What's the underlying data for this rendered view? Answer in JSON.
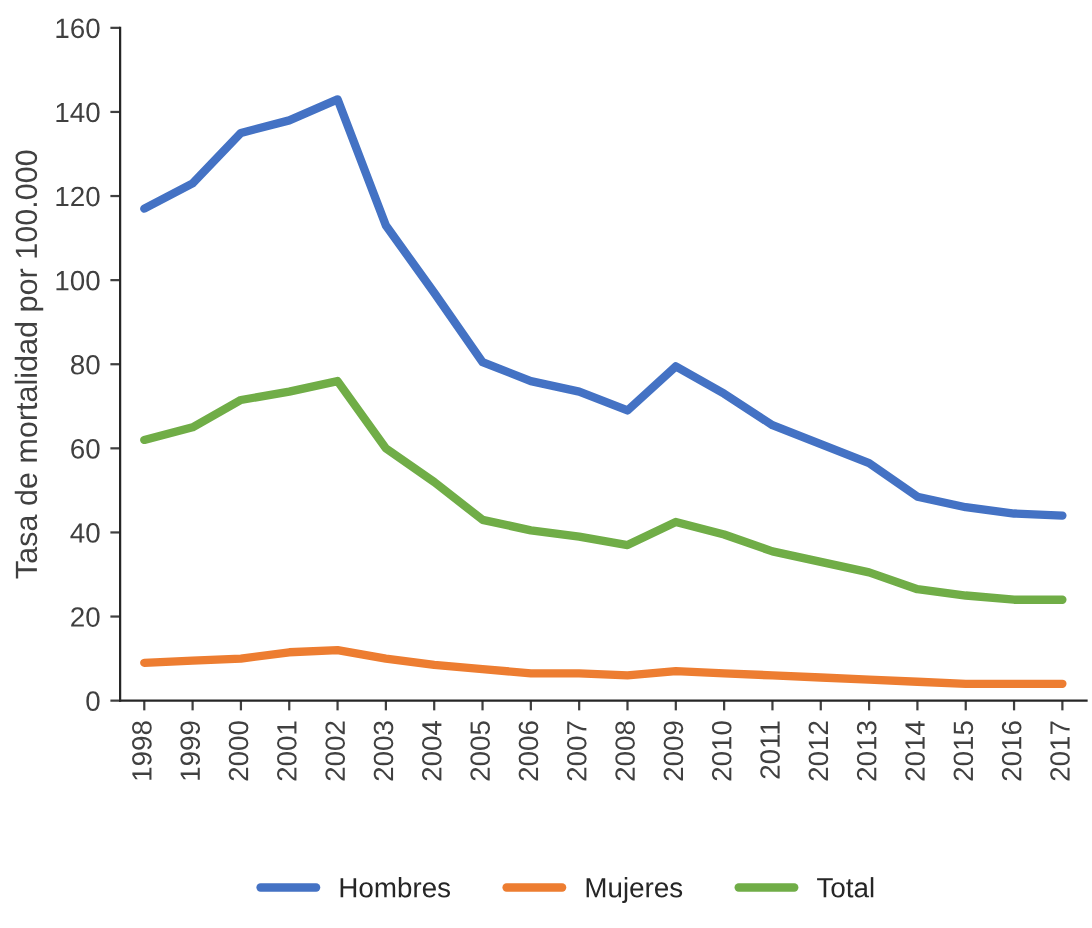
{
  "chart_data": {
    "type": "line",
    "ylabel": "Tasa de mortalidad por 100.000",
    "categories": [
      "1998",
      "1999",
      "2000",
      "2001",
      "2002",
      "2003",
      "2004",
      "2005",
      "2006",
      "2007",
      "2008",
      "2009",
      "2010",
      "2011",
      "2012",
      "2013",
      "2014",
      "2015",
      "2016",
      "2017"
    ],
    "series": [
      {
        "name": "Hombres",
        "color": "#4472c4",
        "values": [
          117,
          123,
          135,
          138,
          143,
          113,
          97,
          80.5,
          76,
          73.5,
          69,
          79.5,
          73,
          65.5,
          61,
          56.5,
          48.5,
          46,
          44.5,
          44
        ]
      },
      {
        "name": "Mujeres",
        "color": "#ed7d31",
        "values": [
          9,
          9.5,
          10,
          11.5,
          12,
          10,
          8.5,
          7.5,
          6.5,
          6.5,
          6,
          7,
          6.5,
          6,
          5.5,
          5,
          4.5,
          4,
          4,
          4
        ]
      },
      {
        "name": "Total",
        "color": "#70ad47",
        "values": [
          62,
          65,
          71.5,
          73.5,
          76,
          60,
          52,
          43,
          40.5,
          39,
          37,
          42.5,
          39.5,
          35.5,
          33,
          30.5,
          26.5,
          25,
          24,
          24
        ]
      }
    ],
    "ylim": [
      0,
      160
    ],
    "yticks": [
      0,
      20,
      40,
      60,
      80,
      100,
      120,
      140,
      160
    ],
    "grid": false,
    "legend": "bottom",
    "marker": "none",
    "line_style": "solid"
  }
}
